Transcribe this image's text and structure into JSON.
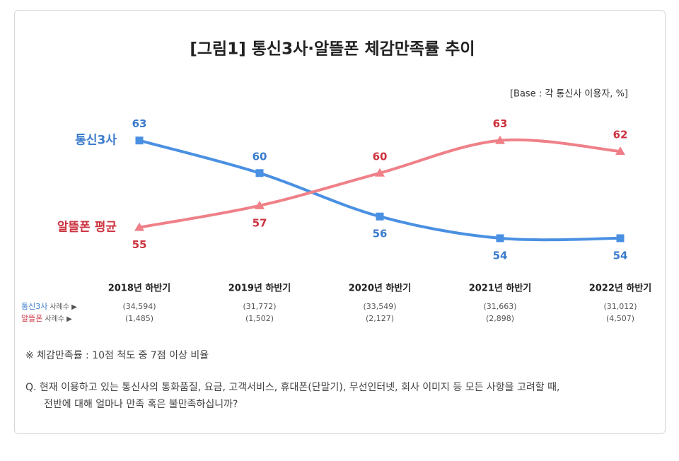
{
  "chart_data": {
    "type": "line",
    "title": "[그림1] 통신3사·알뜰폰 체감만족률 추이",
    "subtitle": "[Base : 각 통신사 이용자, %]",
    "categories": [
      "2018년 하반기",
      "2019년 하반기",
      "2020년 하반기",
      "2021년 하반기",
      "2022년 하반기"
    ],
    "series": [
      {
        "name": "통신3사",
        "color": "#4a90e2",
        "label_color": "#3a7bcc",
        "marker": "square",
        "values": [
          63,
          60,
          56,
          54,
          54
        ]
      },
      {
        "name": "알뜰폰 평균",
        "color": "#ef8088",
        "label_color": "#cc3340",
        "marker": "triangle",
        "values": [
          55,
          57,
          60,
          63,
          62
        ]
      }
    ],
    "ylim": [
      51,
      65
    ],
    "sample_sizes": [
      {
        "series_label": "통신3사",
        "label": "사례수 ▶",
        "values": [
          "(34,594)",
          "(31,772)",
          "(33,549)",
          "(31,663)",
          "(31,012)"
        ]
      },
      {
        "series_label": "알뜰폰",
        "label": "사례수 ▶",
        "values": [
          "(1,485)",
          "(1,502)",
          "(2,127)",
          "(2,898)",
          "(4,507)"
        ]
      }
    ],
    "notes": [
      "※ 체감만족률 : 10점 척도 중 7점 이상 비율",
      "Q. 현재 이용하고 있는 통신사의 통화품질, 요금, 고객서비스, 휴대폰(단말기), 무선인터넷, 회사 이미지 등 모든 사항을 고려할 때,",
      "전반에 대해 얼마나 만족 혹은 불만족하십니까?"
    ]
  }
}
